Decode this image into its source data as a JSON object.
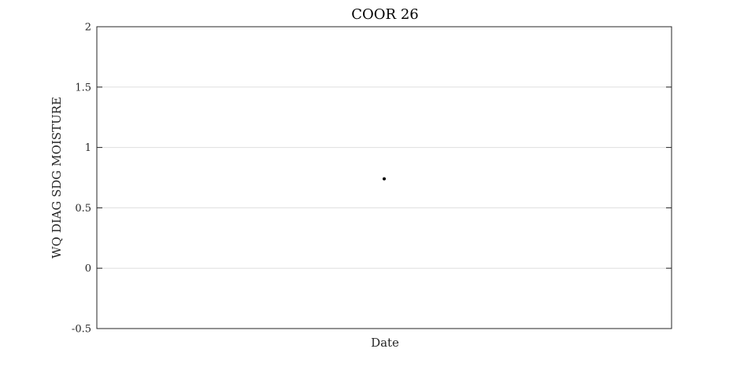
{
  "chart_data": {
    "type": "scatter",
    "title": "COOR 26",
    "xlabel": "Date",
    "ylabel": "WQ DIAG SDG MOISTURE",
    "ylim": [
      -0.5,
      2
    ],
    "yticks": [
      "-0.5",
      "0",
      "0.5",
      "1",
      "1.5",
      "2"
    ],
    "ytick_values": [
      -0.5,
      0,
      0.5,
      1,
      1.5,
      2
    ],
    "grid": "horizontal",
    "legend": "none",
    "points": [
      {
        "x_fraction": 0.5,
        "y": 0.74
      }
    ],
    "colors": {
      "marker": "#000000",
      "grid": "#dfdfdf",
      "axes": "#262626"
    }
  }
}
